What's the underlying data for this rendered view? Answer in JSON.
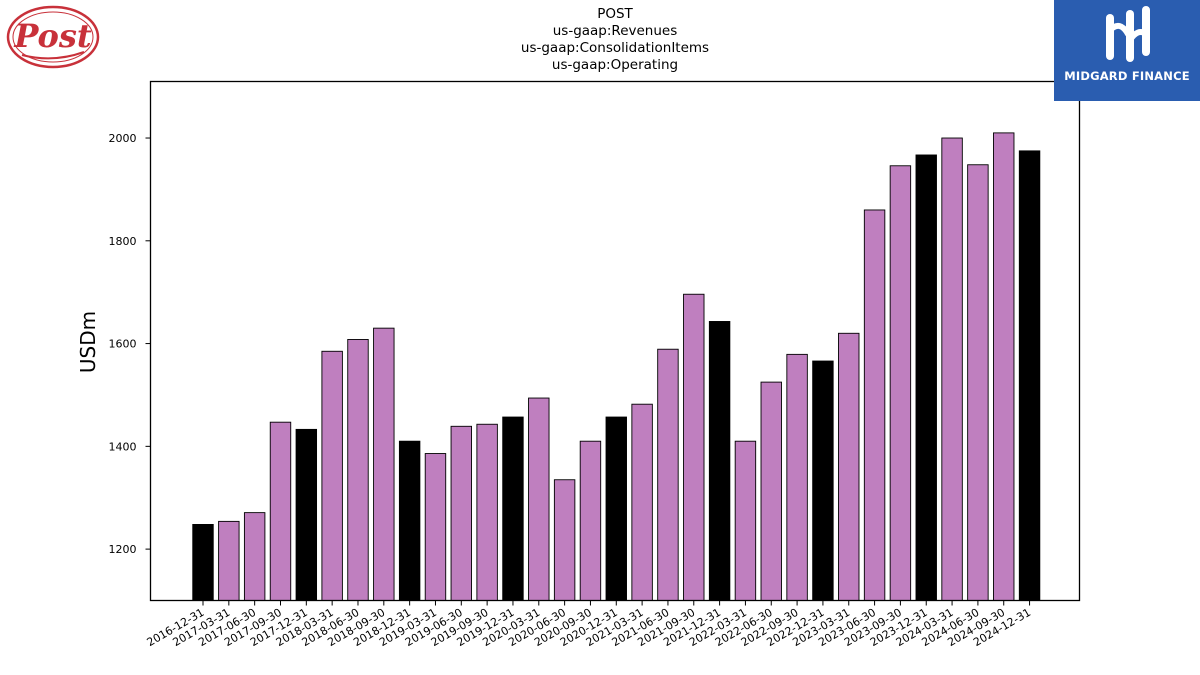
{
  "logos": {
    "left": {
      "text": "Post",
      "color": "#c8313a"
    },
    "right": {
      "text": "MIDGARD FINANCE",
      "background": "#2a5db0"
    }
  },
  "chart_data": {
    "type": "bar",
    "title": [
      "POST",
      "us-gaap:Revenues",
      "us-gaap:ConsolidationItems",
      "us-gaap:Operating"
    ],
    "xlabel": "",
    "ylabel": "USDm",
    "ylim": [
      1100,
      2110
    ],
    "yticks": [
      1200,
      1400,
      1600,
      1800,
      2000
    ],
    "grid": false,
    "colors": {
      "quarter": "#bf7fbf",
      "year_end": "#000000",
      "edge": "#000000"
    },
    "categories": [
      "2016-12-31",
      "2017-03-31",
      "2017-06-30",
      "2017-09-30",
      "2017-12-31",
      "2018-03-31",
      "2018-06-30",
      "2018-09-30",
      "2018-12-31",
      "2019-03-31",
      "2019-06-30",
      "2019-09-30",
      "2019-12-31",
      "2020-03-31",
      "2020-06-30",
      "2020-09-30",
      "2020-12-31",
      "2021-03-31",
      "2021-06-30",
      "2021-09-30",
      "2021-12-31",
      "2022-03-31",
      "2022-06-30",
      "2022-09-30",
      "2022-12-31",
      "2023-03-31",
      "2023-06-30",
      "2023-09-30",
      "2023-12-31",
      "2024-03-31",
      "2024-06-30",
      "2024-09-30",
      "2024-12-31"
    ],
    "values": [
      1248,
      1254,
      1271,
      1447,
      1433,
      1585,
      1608,
      1630,
      1410,
      1386,
      1439,
      1443,
      1457,
      1494,
      1335,
      1410,
      1457,
      1482,
      1589,
      1696,
      1643,
      1410,
      1525,
      1579,
      1566,
      1620,
      1860,
      1946,
      1967,
      2000,
      1948,
      2010,
      1975
    ],
    "highlight_year_end": [
      true,
      false,
      false,
      false,
      true,
      false,
      false,
      false,
      true,
      false,
      false,
      false,
      true,
      false,
      false,
      false,
      true,
      false,
      false,
      false,
      true,
      false,
      false,
      false,
      true,
      false,
      false,
      false,
      true,
      false,
      false,
      false,
      true
    ]
  }
}
